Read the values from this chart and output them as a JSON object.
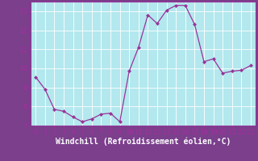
{
  "x": [
    0,
    1,
    2,
    3,
    4,
    5,
    6,
    7,
    8,
    9,
    10,
    11,
    12,
    13,
    14,
    15,
    16,
    17,
    18,
    19,
    20,
    21,
    22,
    23
  ],
  "y": [
    9.55,
    8.9,
    7.85,
    7.75,
    7.45,
    7.2,
    7.35,
    7.6,
    7.65,
    7.2,
    9.85,
    11.1,
    12.8,
    12.35,
    13.05,
    13.3,
    13.3,
    12.3,
    10.35,
    10.5,
    9.75,
    9.85,
    9.9,
    10.15
  ],
  "line_color": "#993399",
  "marker": "D",
  "marker_size": 2.5,
  "plot_bg_color": "#b3e8ee",
  "fig_bg_color": "#7b3f8c",
  "grid_color": "#ffffff",
  "xlabel": "Windchill (Refroidissement éolien,°C)",
  "ylim": [
    7,
    13.5
  ],
  "xlim": [
    -0.5,
    23.5
  ],
  "yticks": [
    7,
    8,
    9,
    10,
    11,
    12,
    13
  ],
  "xticks": [
    0,
    1,
    2,
    3,
    4,
    5,
    6,
    7,
    8,
    9,
    10,
    11,
    12,
    13,
    14,
    15,
    16,
    17,
    18,
    19,
    20,
    21,
    22,
    23
  ],
  "tick_color": "#993399",
  "label_color": "#ffffff",
  "xlabel_fontsize": 7,
  "tick_fontsize": 6.5,
  "spine_color": "#993399"
}
